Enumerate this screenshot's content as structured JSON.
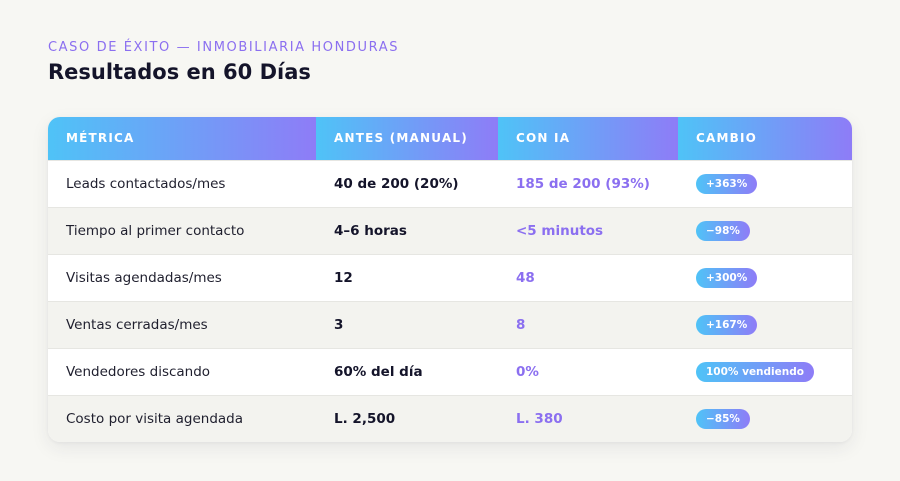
{
  "header": {
    "eyebrow": "CASO DE ÉXITO — INMOBILIARIA HONDURAS",
    "title": "Resultados en 60 Días"
  },
  "colors": {
    "accent_purple": "#8b6ff0",
    "gradient_start": "#4fc3f7",
    "gradient_end": "#8e7cf7"
  },
  "table": {
    "columns": [
      "MÉTRICA",
      "ANTES (MANUAL)",
      "CON IA",
      "CAMBIO"
    ],
    "rows": [
      {
        "metric": "Leads contactados/mes",
        "before": "40 de 200 (20%)",
        "after": "185 de 200 (93%)",
        "change": "+363%"
      },
      {
        "metric": "Tiempo al primer contacto",
        "before": "4–6 horas",
        "after": "<5 minutos",
        "change": "−98%"
      },
      {
        "metric": "Visitas agendadas/mes",
        "before": "12",
        "after": "48",
        "change": "+300%"
      },
      {
        "metric": "Ventas cerradas/mes",
        "before": "3",
        "after": "8",
        "change": "+167%"
      },
      {
        "metric": "Vendedores discando",
        "before": "60% del día",
        "after": "0%",
        "change": "100% vendiendo"
      },
      {
        "metric": "Costo por visita agendada",
        "before": "L. 2,500",
        "after": "L. 380",
        "change": "−85%"
      }
    ]
  }
}
